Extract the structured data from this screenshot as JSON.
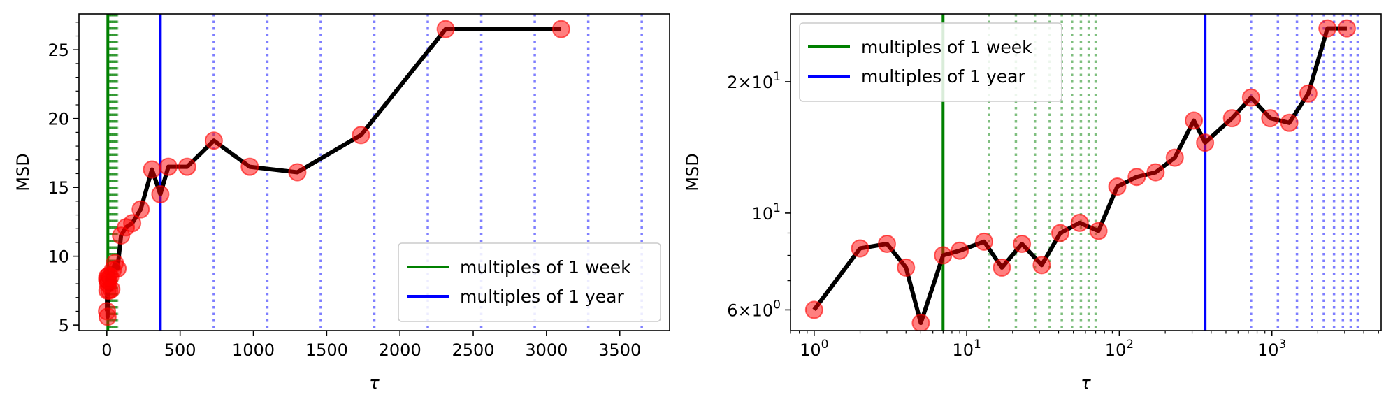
{
  "chart_data": [
    {
      "type": "line",
      "xscale": "linear",
      "yscale": "linear",
      "xlabel": "τ",
      "ylabel": "MSD",
      "xlim": [
        -190,
        3840
      ],
      "ylim": [
        4.6,
        27.6
      ],
      "xticks": [
        0,
        500,
        1000,
        1500,
        2000,
        2500,
        3000,
        3500
      ],
      "xtick_labels": [
        "0",
        "500",
        "1000",
        "1500",
        "2000",
        "2500",
        "3000",
        "3500"
      ],
      "yticks": [
        5,
        10,
        15,
        20,
        25
      ],
      "ytick_labels": [
        "5",
        "10",
        "15",
        "20",
        "25"
      ],
      "series": [
        {
          "x": [
            1,
            2,
            3,
            4,
            5,
            7,
            9,
            13,
            17,
            23,
            31,
            41,
            55,
            73,
            97,
            130,
            173,
            231,
            308,
            365,
            420,
            548,
            730,
            975,
            1300,
            1734,
            2312,
            3100
          ],
          "y": [
            6.0,
            8.3,
            8.5,
            7.5,
            5.6,
            8.0,
            8.2,
            8.6,
            7.5,
            8.5,
            7.6,
            9.0,
            9.5,
            9.1,
            11.5,
            12.1,
            12.4,
            13.4,
            16.3,
            14.5,
            16.5,
            16.5,
            18.4,
            16.5,
            16.1,
            18.8,
            26.5,
            26.5
          ],
          "line_color": "#000000",
          "marker_color": "#ff0000"
        }
      ],
      "vlines": [
        {
          "name": "multiples of 1 week",
          "color": "#008000",
          "solid_x": 7,
          "dotted_step": 7,
          "dotted_max": 73
        },
        {
          "name": "multiples of 1 year",
          "color": "#0000ff",
          "solid_x": 365,
          "dotted_step": 365,
          "dotted_max": 3650
        }
      ],
      "legend": "lower-right"
    },
    {
      "type": "line",
      "xscale": "log",
      "yscale": "log",
      "xlabel": "τ",
      "ylabel": "MSD",
      "xlim": [
        0.7,
        5200
      ],
      "ylim": [
        5.38,
        28.6
      ],
      "xticks": [
        1,
        10,
        100,
        1000
      ],
      "xtick_labels": [
        [
          "10",
          "0"
        ],
        [
          "10",
          "1"
        ],
        [
          "10",
          "2"
        ],
        [
          "10",
          "3"
        ]
      ],
      "yticks": [
        6,
        10,
        20
      ],
      "ytick_labels": [
        [
          "6×10",
          "0"
        ],
        [
          "10",
          "1"
        ],
        [
          "2×10",
          "1"
        ]
      ],
      "series": [
        {
          "x": [
            1,
            2,
            3,
            4,
            5,
            7,
            9,
            13,
            17,
            23,
            31,
            41,
            55,
            73,
            97,
            130,
            173,
            231,
            308,
            365,
            548,
            730,
            975,
            1300,
            1734,
            2312,
            3100
          ],
          "y": [
            6.0,
            8.3,
            8.5,
            7.5,
            5.6,
            8.0,
            8.2,
            8.6,
            7.5,
            8.5,
            7.6,
            9.0,
            9.5,
            9.1,
            11.5,
            12.1,
            12.4,
            13.4,
            16.3,
            14.5,
            16.5,
            18.4,
            16.5,
            16.1,
            18.8,
            26.5,
            26.5
          ],
          "line_color": "#000000",
          "marker_color": "#ff0000"
        }
      ],
      "vlines": [
        {
          "name": "multiples of 1 week",
          "color": "#008000",
          "solid_x": 7,
          "dotted_step": 7,
          "dotted_max": 73
        },
        {
          "name": "multiples of 1 year",
          "color": "#0000ff",
          "solid_x": 365,
          "dotted_step": 365,
          "dotted_max": 3650
        }
      ],
      "legend": "upper-left"
    }
  ]
}
